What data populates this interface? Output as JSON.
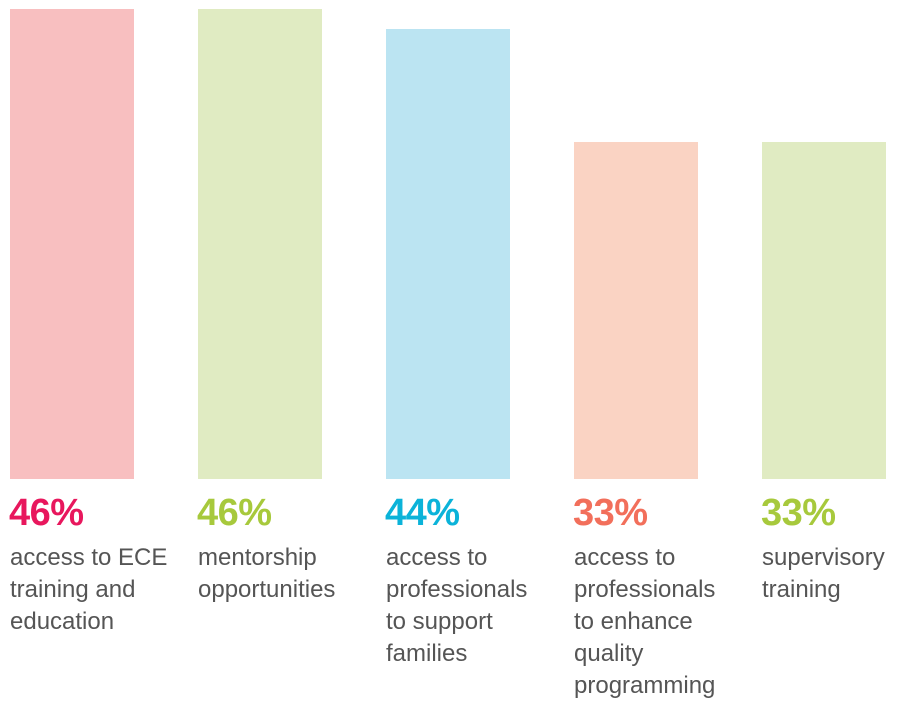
{
  "chart_data": {
    "type": "bar",
    "title": "",
    "xlabel": "",
    "ylabel": "",
    "categories": [
      "access to ECE\ntraining and\neducation",
      "mentorship\nopportunities",
      "access to\nprofessionals\nto support\nfamilies",
      "access to\nprofessionals\nto enhance\nquality\nprogramming",
      "supervisory\ntraining"
    ],
    "values": [
      46,
      46,
      44,
      33,
      33
    ],
    "value_labels": [
      "46%",
      "46%",
      "44%",
      "33%",
      "33%"
    ],
    "ylim": [
      0,
      46
    ],
    "grid": false,
    "legend": "none",
    "bar_colors": [
      "#f8bfc0",
      "#e0ebc2",
      "#bbe4f2",
      "#fad3c3",
      "#e0ebc2"
    ],
    "label_colors": [
      "#e8175d",
      "#a7c93c",
      "#0bb3d9",
      "#f26f5b",
      "#a7c93c"
    ],
    "text_color": "#555555"
  }
}
